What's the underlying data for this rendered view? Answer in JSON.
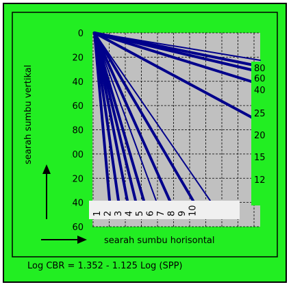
{
  "vertical_axis": {
    "label": "searah sumbu vertikal",
    "ticks": [
      0,
      20,
      40,
      60,
      80,
      100,
      120,
      140,
      160
    ]
  },
  "horizontal_axis": {
    "label": "searah sumbu horisontal",
    "labels": [
      1,
      2,
      3,
      4,
      5,
      6,
      7,
      8,
      9,
      10
    ]
  },
  "curve_labels": [
    80,
    60,
    40,
    25,
    20,
    15,
    12
  ],
  "formula": "Log CBR = 1.352 - 1.125 Log (SPP)"
}
